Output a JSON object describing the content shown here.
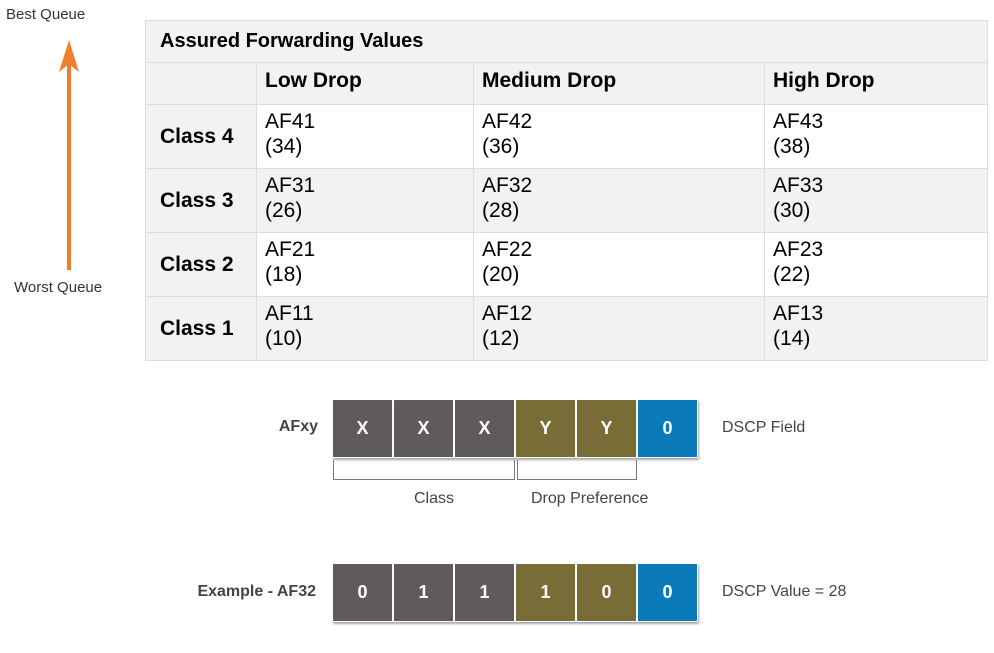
{
  "queue": {
    "best_label": "Best Queue",
    "worst_label": "Worst Queue",
    "arrow_color": "#f07f2d"
  },
  "table": {
    "title": "Assured Forwarding Values",
    "columns": [
      "Low Drop",
      "Medium Drop",
      "High Drop"
    ],
    "rows": [
      {
        "class": "Class 4",
        "cells": [
          [
            "AF41",
            "(34)"
          ],
          [
            "AF42",
            "(36)"
          ],
          [
            "AF43",
            "(38)"
          ]
        ]
      },
      {
        "class": "Class 3",
        "cells": [
          [
            "AF31",
            "(26)"
          ],
          [
            "AF32",
            "(28)"
          ],
          [
            "AF33",
            "(30)"
          ]
        ]
      },
      {
        "class": "Class 2",
        "cells": [
          [
            "AF21",
            "(18)"
          ],
          [
            "AF22",
            "(20)"
          ],
          [
            "AF23",
            "(22)"
          ]
        ]
      },
      {
        "class": "Class 1",
        "cells": [
          [
            "AF11",
            "(10)"
          ],
          [
            "AF12",
            "(12)"
          ],
          [
            "AF13",
            "(14)"
          ]
        ]
      }
    ]
  },
  "afxy": {
    "label": "AFxy",
    "bits": [
      {
        "value": "X",
        "group": "grey"
      },
      {
        "value": "X",
        "group": "grey"
      },
      {
        "value": "X",
        "group": "grey"
      },
      {
        "value": "Y",
        "group": "olive"
      },
      {
        "value": "Y",
        "group": "olive"
      },
      {
        "value": "0",
        "group": "blue"
      }
    ],
    "note": "DSCP Field",
    "class_label": "Class",
    "drop_label": "Drop Preference"
  },
  "example": {
    "label": "Example - AF32",
    "bits": [
      {
        "value": "0",
        "group": "grey"
      },
      {
        "value": "1",
        "group": "grey"
      },
      {
        "value": "1",
        "group": "grey"
      },
      {
        "value": "1",
        "group": "olive"
      },
      {
        "value": "0",
        "group": "olive"
      },
      {
        "value": "0",
        "group": "blue"
      }
    ],
    "note": "DSCP Value = 28"
  },
  "colors": {
    "grey": "#5f5a5b",
    "olive": "#786c37",
    "blue": "#0b7ab8"
  }
}
